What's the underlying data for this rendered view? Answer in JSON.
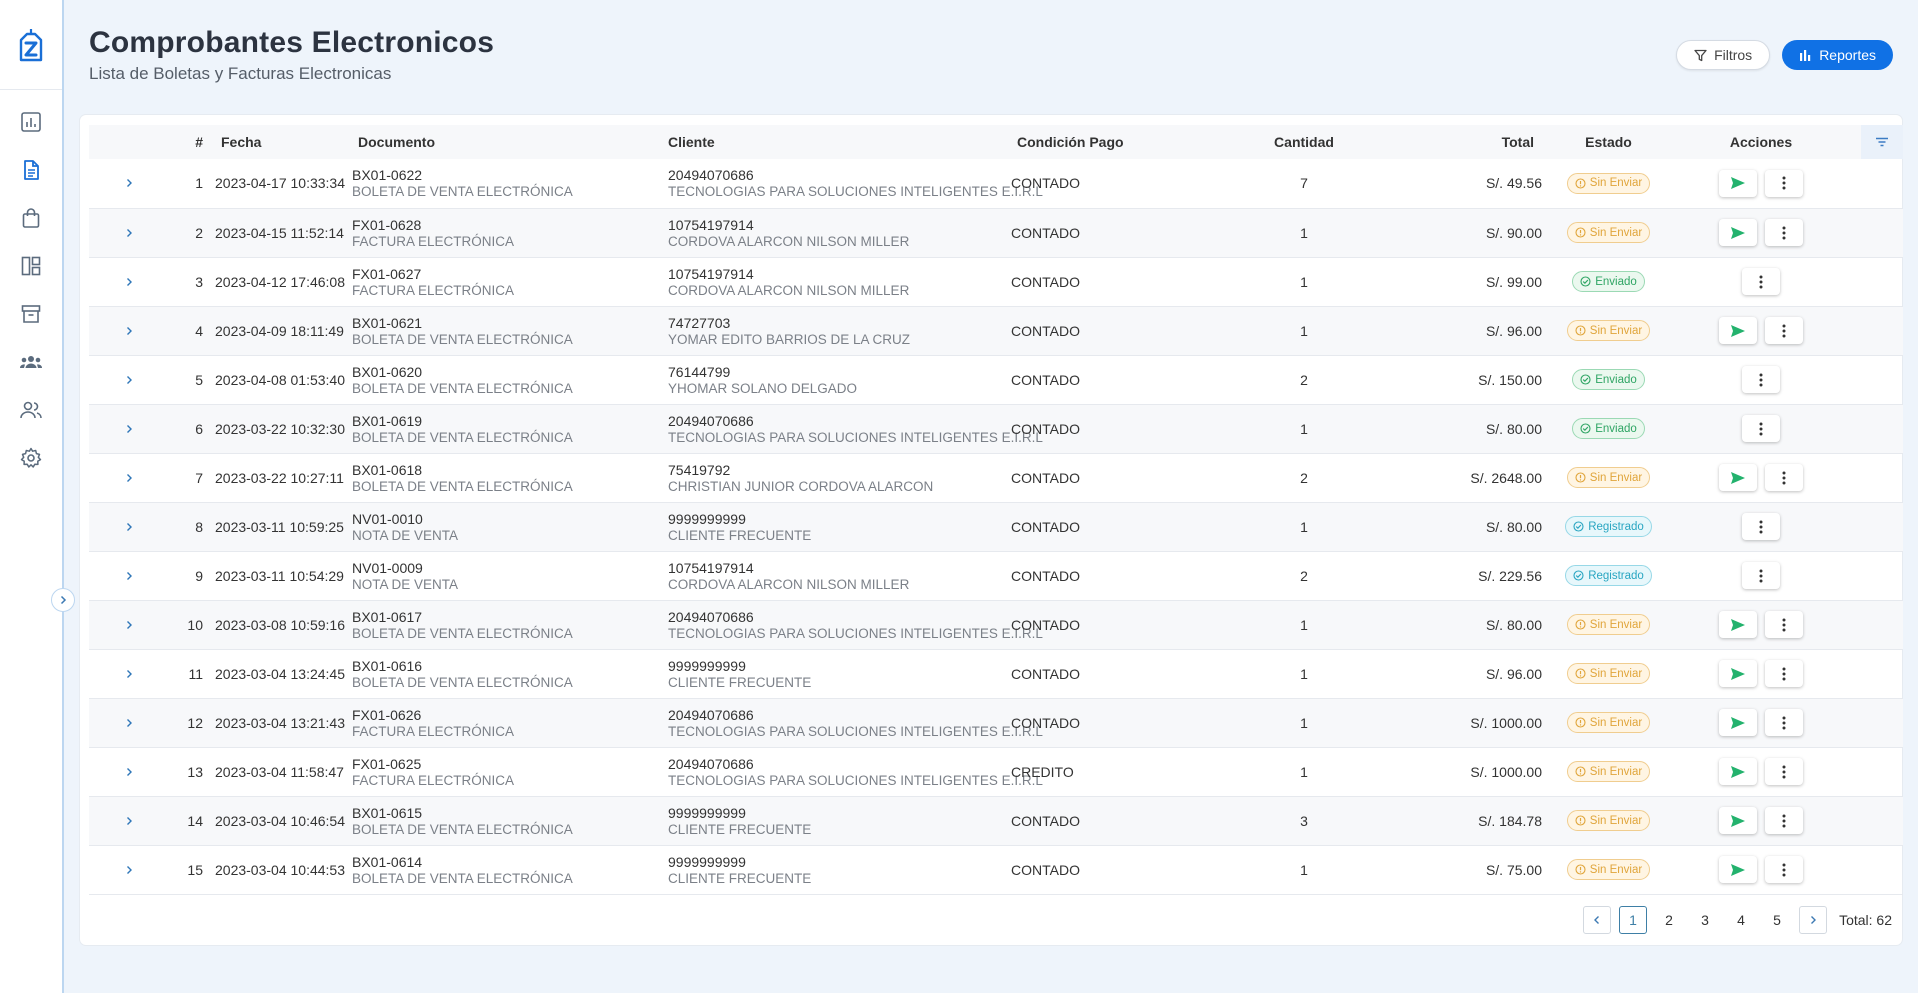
{
  "page": {
    "title": "Comprobantes Electronicos",
    "subtitle": "Lista de Boletas y Facturas Electronicas"
  },
  "toolbar": {
    "filter_label": "Filtros",
    "report_label": "Reportes"
  },
  "table": {
    "headers": {
      "num": "#",
      "fecha": "Fecha",
      "documento": "Documento",
      "cliente": "Cliente",
      "condicion": "Condición Pago",
      "cantidad": "Cantidad",
      "total": "Total",
      "estado": "Estado",
      "acciones": "Acciones"
    },
    "rows": [
      {
        "n": "1",
        "fecha": "2023-04-17 10:33:34",
        "doc": "BX01-0622",
        "doc_tipo": "BOLETA DE VENTA ELECTRÓNICA",
        "ruc": "20494070686",
        "cliente": "TECNOLOGIAS PARA SOLUCIONES INTELIGENTES E.I.R.L",
        "cond": "CONTADO",
        "cant": "7",
        "total": "S/. 49.56",
        "estado": "Sin Enviar",
        "estado_tipo": "sin"
      },
      {
        "n": "2",
        "fecha": "2023-04-15 11:52:14",
        "doc": "FX01-0628",
        "doc_tipo": "FACTURA ELECTRÓNICA",
        "ruc": "10754197914",
        "cliente": "CORDOVA ALARCON NILSON MILLER",
        "cond": "CONTADO",
        "cant": "1",
        "total": "S/. 90.00",
        "estado": "Sin Enviar",
        "estado_tipo": "sin"
      },
      {
        "n": "3",
        "fecha": "2023-04-12 17:46:08",
        "doc": "FX01-0627",
        "doc_tipo": "FACTURA ELECTRÓNICA",
        "ruc": "10754197914",
        "cliente": "CORDOVA ALARCON NILSON MILLER",
        "cond": "CONTADO",
        "cant": "1",
        "total": "S/. 99.00",
        "estado": "Enviado",
        "estado_tipo": "env"
      },
      {
        "n": "4",
        "fecha": "2023-04-09 18:11:49",
        "doc": "BX01-0621",
        "doc_tipo": "BOLETA DE VENTA ELECTRÓNICA",
        "ruc": "74727703",
        "cliente": "YOMAR EDITO BARRIOS DE LA CRUZ",
        "cond": "CONTADO",
        "cant": "1",
        "total": "S/. 96.00",
        "estado": "Sin Enviar",
        "estado_tipo": "sin"
      },
      {
        "n": "5",
        "fecha": "2023-04-08 01:53:40",
        "doc": "BX01-0620",
        "doc_tipo": "BOLETA DE VENTA ELECTRÓNICA",
        "ruc": "76144799",
        "cliente": "YHOMAR SOLANO DELGADO",
        "cond": "CONTADO",
        "cant": "2",
        "total": "S/. 150.00",
        "estado": "Enviado",
        "estado_tipo": "env"
      },
      {
        "n": "6",
        "fecha": "2023-03-22 10:32:30",
        "doc": "BX01-0619",
        "doc_tipo": "BOLETA DE VENTA ELECTRÓNICA",
        "ruc": "20494070686",
        "cliente": "TECNOLOGIAS PARA SOLUCIONES INTELIGENTES E.I.R.L",
        "cond": "CONTADO",
        "cant": "1",
        "total": "S/. 80.00",
        "estado": "Enviado",
        "estado_tipo": "env"
      },
      {
        "n": "7",
        "fecha": "2023-03-22 10:27:11",
        "doc": "BX01-0618",
        "doc_tipo": "BOLETA DE VENTA ELECTRÓNICA",
        "ruc": "75419792",
        "cliente": "CHRISTIAN JUNIOR CORDOVA ALARCON",
        "cond": "CONTADO",
        "cant": "2",
        "total": "S/. 2648.00",
        "estado": "Sin Enviar",
        "estado_tipo": "sin"
      },
      {
        "n": "8",
        "fecha": "2023-03-11 10:59:25",
        "doc": "NV01-0010",
        "doc_tipo": "NOTA DE VENTA",
        "ruc": "9999999999",
        "cliente": "CLIENTE FRECUENTE",
        "cond": "CONTADO",
        "cant": "1",
        "total": "S/. 80.00",
        "estado": "Registrado",
        "estado_tipo": "reg"
      },
      {
        "n": "9",
        "fecha": "2023-03-11 10:54:29",
        "doc": "NV01-0009",
        "doc_tipo": "NOTA DE VENTA",
        "ruc": "10754197914",
        "cliente": "CORDOVA ALARCON NILSON MILLER",
        "cond": "CONTADO",
        "cant": "2",
        "total": "S/. 229.56",
        "estado": "Registrado",
        "estado_tipo": "reg"
      },
      {
        "n": "10",
        "fecha": "2023-03-08 10:59:16",
        "doc": "BX01-0617",
        "doc_tipo": "BOLETA DE VENTA ELECTRÓNICA",
        "ruc": "20494070686",
        "cliente": "TECNOLOGIAS PARA SOLUCIONES INTELIGENTES E.I.R.L",
        "cond": "CONTADO",
        "cant": "1",
        "total": "S/. 80.00",
        "estado": "Sin Enviar",
        "estado_tipo": "sin"
      },
      {
        "n": "11",
        "fecha": "2023-03-04 13:24:45",
        "doc": "BX01-0616",
        "doc_tipo": "BOLETA DE VENTA ELECTRÓNICA",
        "ruc": "9999999999",
        "cliente": "CLIENTE FRECUENTE",
        "cond": "CONTADO",
        "cant": "1",
        "total": "S/. 96.00",
        "estado": "Sin Enviar",
        "estado_tipo": "sin"
      },
      {
        "n": "12",
        "fecha": "2023-03-04 13:21:43",
        "doc": "FX01-0626",
        "doc_tipo": "FACTURA ELECTRÓNICA",
        "ruc": "20494070686",
        "cliente": "TECNOLOGIAS PARA SOLUCIONES INTELIGENTES E.I.R.L",
        "cond": "CONTADO",
        "cant": "1",
        "total": "S/. 1000.00",
        "estado": "Sin Enviar",
        "estado_tipo": "sin"
      },
      {
        "n": "13",
        "fecha": "2023-03-04 11:58:47",
        "doc": "FX01-0625",
        "doc_tipo": "FACTURA ELECTRÓNICA",
        "ruc": "20494070686",
        "cliente": "TECNOLOGIAS PARA SOLUCIONES INTELIGENTES E.I.R.L",
        "cond": "CREDITO",
        "cant": "1",
        "total": "S/. 1000.00",
        "estado": "Sin Enviar",
        "estado_tipo": "sin"
      },
      {
        "n": "14",
        "fecha": "2023-03-04 10:46:54",
        "doc": "BX01-0615",
        "doc_tipo": "BOLETA DE VENTA ELECTRÓNICA",
        "ruc": "9999999999",
        "cliente": "CLIENTE FRECUENTE",
        "cond": "CONTADO",
        "cant": "3",
        "total": "S/. 184.78",
        "estado": "Sin Enviar",
        "estado_tipo": "sin"
      },
      {
        "n": "15",
        "fecha": "2023-03-04 10:44:53",
        "doc": "BX01-0614",
        "doc_tipo": "BOLETA DE VENTA ELECTRÓNICA",
        "ruc": "9999999999",
        "cliente": "CLIENTE FRECUENTE",
        "cond": "CONTADO",
        "cant": "1",
        "total": "S/. 75.00",
        "estado": "Sin Enviar",
        "estado_tipo": "sin"
      }
    ]
  },
  "pagination": {
    "pages": [
      "1",
      "2",
      "3",
      "4",
      "5"
    ],
    "current": "1",
    "total_label": "Total: 62"
  },
  "colors": {
    "primary": "#1071e5",
    "sin_enviar": "#e0a53b",
    "enviado": "#2fa564",
    "registrado": "#2aa6c2",
    "send_icon": "#23b26d"
  },
  "icons": {
    "sidebar": [
      "chart-icon",
      "document-icon",
      "bag-icon",
      "layout-icon",
      "archive-icon",
      "team-icon",
      "users-icon",
      "gear-icon"
    ]
  }
}
